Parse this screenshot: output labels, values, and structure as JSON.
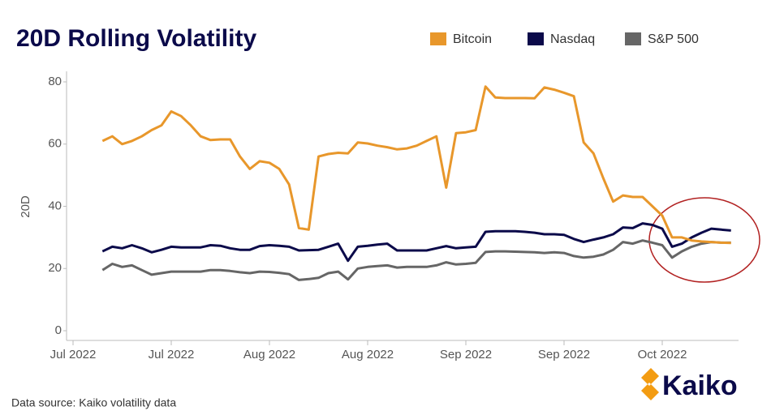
{
  "chart_data": {
    "type": "line",
    "title": "20D Rolling Volatility",
    "y_label": "20D",
    "source": "Data source: Kaiko volatility data",
    "logo": "Kaiko",
    "categories": [
      "Jul 2022",
      null,
      null,
      null,
      null,
      null,
      null,
      null,
      null,
      null,
      "Jul 2022",
      null,
      null,
      null,
      null,
      null,
      null,
      null,
      null,
      null,
      "Aug 2022",
      null,
      null,
      null,
      null,
      null,
      null,
      null,
      null,
      null,
      "Aug 2022",
      null,
      null,
      null,
      null,
      null,
      null,
      null,
      null,
      null,
      "Sep 2022",
      null,
      null,
      null,
      null,
      null,
      null,
      null,
      null,
      null,
      "Sep 2022",
      null,
      null,
      null,
      null,
      null,
      null,
      null,
      null,
      null,
      "Oct 2022",
      null,
      null,
      null,
      null,
      null,
      null,
      null
    ],
    "series": [
      {
        "name": "Bitcoin",
        "color": "#e8972b",
        "values": [
          null,
          null,
          null,
          61,
          62.5,
          60,
          61,
          62.5,
          64.5,
          66,
          70.5,
          69,
          66,
          62.5,
          61.3,
          61.5,
          61.5,
          56,
          52,
          54.5,
          54,
          52,
          47,
          33,
          32.5,
          56,
          56.8,
          57.2,
          57,
          60.5,
          60.2,
          59.5,
          59,
          58.3,
          58.6,
          59.5,
          61,
          62.5,
          46,
          63.5,
          63.8,
          64.5,
          78.5,
          75,
          74.8,
          74.8,
          74.8,
          74.7,
          78.2,
          77.5,
          76.5,
          75.4,
          60.5,
          57,
          49,
          41.5,
          43.5,
          43,
          43,
          40,
          37,
          30,
          30,
          29,
          28.7,
          28.5,
          28.3,
          28.2
        ]
      },
      {
        "name": "Nasdaq",
        "color": "#0b0a4a",
        "values": [
          null,
          null,
          null,
          25.5,
          27,
          26.5,
          27.5,
          26.5,
          25.2,
          26,
          27,
          26.8,
          26.8,
          26.8,
          27.5,
          27.3,
          26.5,
          26,
          26,
          27.2,
          27.5,
          27.3,
          27,
          25.8,
          25.9,
          26,
          27,
          28,
          22.5,
          27,
          27.3,
          27.7,
          28,
          25.8,
          25.8,
          25.8,
          25.8,
          26.5,
          27.2,
          26.5,
          26.8,
          27,
          31.8,
          32,
          32,
          32,
          31.8,
          31.5,
          31,
          31,
          30.8,
          29.5,
          28.5,
          29.3,
          30,
          31,
          33.2,
          33,
          34.5,
          34,
          32.8,
          27,
          28,
          30,
          31.5,
          32.8,
          32.5,
          32.2
        ]
      },
      {
        "name": "S&P 500",
        "color": "#666666",
        "values": [
          null,
          null,
          null,
          19.5,
          21.5,
          20.5,
          21,
          19.5,
          18,
          18.5,
          19,
          19,
          19,
          19,
          19.5,
          19.5,
          19.2,
          18.8,
          18.5,
          19,
          18.9,
          18.6,
          18.2,
          16.3,
          16.6,
          17,
          18.5,
          19,
          16.5,
          20,
          20.5,
          20.8,
          21,
          20.3,
          20.5,
          20.5,
          20.5,
          21,
          22,
          21.3,
          21.5,
          21.8,
          25.3,
          25.5,
          25.5,
          25.4,
          25.3,
          25.2,
          25,
          25.2,
          25,
          24,
          23.5,
          23.8,
          24.5,
          26,
          28.5,
          28,
          29,
          28.3,
          27.5,
          23.5,
          25.5,
          27,
          28,
          28.5,
          28.3,
          28.3
        ]
      }
    ],
    "ylim": [
      0,
      80
    ],
    "yticks": [
      0,
      20,
      40,
      60,
      80
    ],
    "grid": false
  }
}
